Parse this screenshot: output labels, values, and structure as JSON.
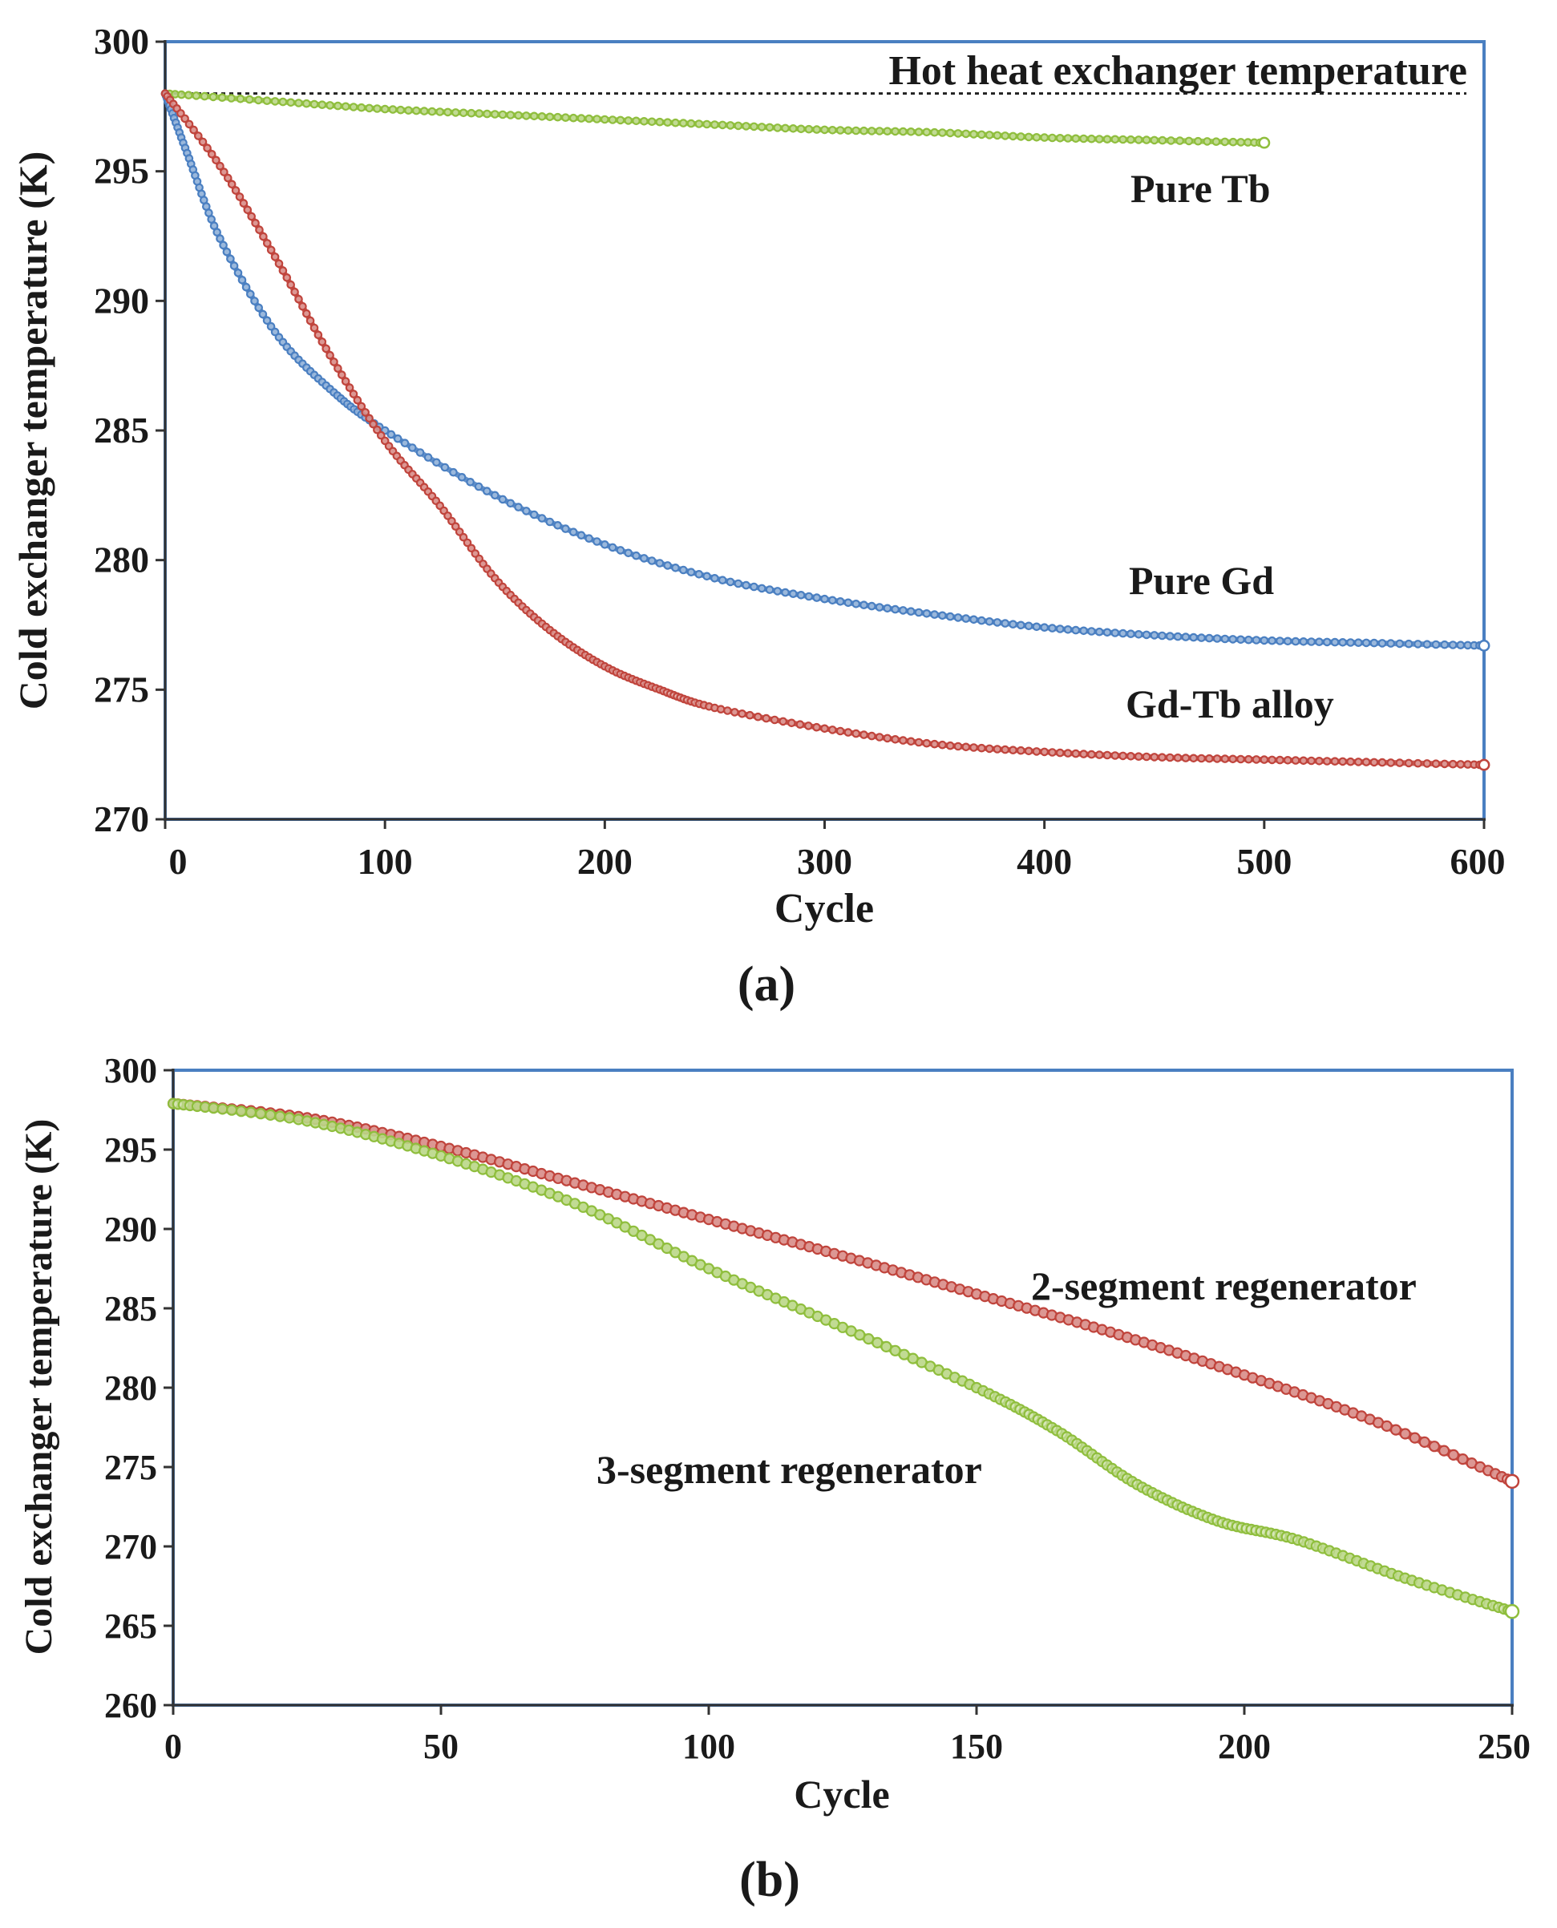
{
  "chart_data": [
    {
      "type": "line",
      "panel_label": "(a)",
      "xlabel": "Cycle",
      "ylabel": "Cold exchanger temperature (K)",
      "xlim": [
        0,
        600
      ],
      "ylim": [
        270,
        300
      ],
      "xticks": [
        "0",
        "100",
        "200",
        "300",
        "400",
        "500",
        "600"
      ],
      "yticks": [
        "270",
        "275",
        "280",
        "285",
        "290",
        "295",
        "300"
      ],
      "reference_line": {
        "label": "Hot heat exchanger temperature",
        "y": 298
      },
      "series": [
        {
          "name": "Pure Tb",
          "color": "#8fbe3d",
          "x": [
            0,
            50,
            100,
            150,
            200,
            250,
            300,
            350,
            400,
            450,
            500
          ],
          "y": [
            298.0,
            297.7,
            297.4,
            297.2,
            297.0,
            296.8,
            296.6,
            296.5,
            296.3,
            296.2,
            296.1
          ]
        },
        {
          "name": "Pure Gd",
          "color": "#4a7fc1",
          "x": [
            0,
            10,
            25,
            50,
            75,
            100,
            150,
            200,
            250,
            300,
            350,
            400,
            450,
            500,
            550,
            600
          ],
          "y": [
            298.0,
            295.7,
            292.4,
            288.8,
            286.6,
            285.0,
            282.5,
            280.6,
            279.3,
            278.5,
            277.9,
            277.4,
            277.1,
            276.9,
            276.8,
            276.7
          ]
        },
        {
          "name": "Gd-Tb alloy",
          "color": "#c0443c",
          "x": [
            0,
            25,
            50,
            75,
            100,
            125,
            150,
            175,
            200,
            225,
            250,
            300,
            350,
            400,
            450,
            500,
            550,
            600
          ],
          "y": [
            298.0,
            295.2,
            291.7,
            287.9,
            284.6,
            282.1,
            279.3,
            277.3,
            275.9,
            275.0,
            274.3,
            273.5,
            272.9,
            272.6,
            272.4,
            272.3,
            272.2,
            272.1
          ]
        }
      ]
    },
    {
      "type": "line",
      "panel_label": "(b)",
      "xlabel": "Cycle",
      "ylabel": "Cold exchanger temperature (K)",
      "xlim": [
        0,
        250
      ],
      "ylim": [
        260,
        300
      ],
      "xticks": [
        "0",
        "50",
        "100",
        "150",
        "200",
        "250"
      ],
      "yticks": [
        "260",
        "265",
        "270",
        "275",
        "280",
        "285",
        "290",
        "295",
        "300"
      ],
      "series": [
        {
          "name": "2-segment regenerator",
          "color": "#c0443c",
          "x": [
            0,
            25,
            50,
            75,
            100,
            125,
            150,
            175,
            200,
            225,
            250
          ],
          "y": [
            297.9,
            297.0,
            295.2,
            292.9,
            290.6,
            288.3,
            285.9,
            283.5,
            280.8,
            277.8,
            274.1
          ]
        },
        {
          "name": "3-segment regenerator",
          "color": "#8fbe3d",
          "x": [
            0,
            25,
            50,
            75,
            100,
            125,
            150,
            165,
            180,
            195,
            210,
            230,
            250
          ],
          "y": [
            297.9,
            296.8,
            294.6,
            291.6,
            287.5,
            283.8,
            280.0,
            277.3,
            273.9,
            271.6,
            270.4,
            268.0,
            265.9
          ]
        }
      ]
    }
  ]
}
